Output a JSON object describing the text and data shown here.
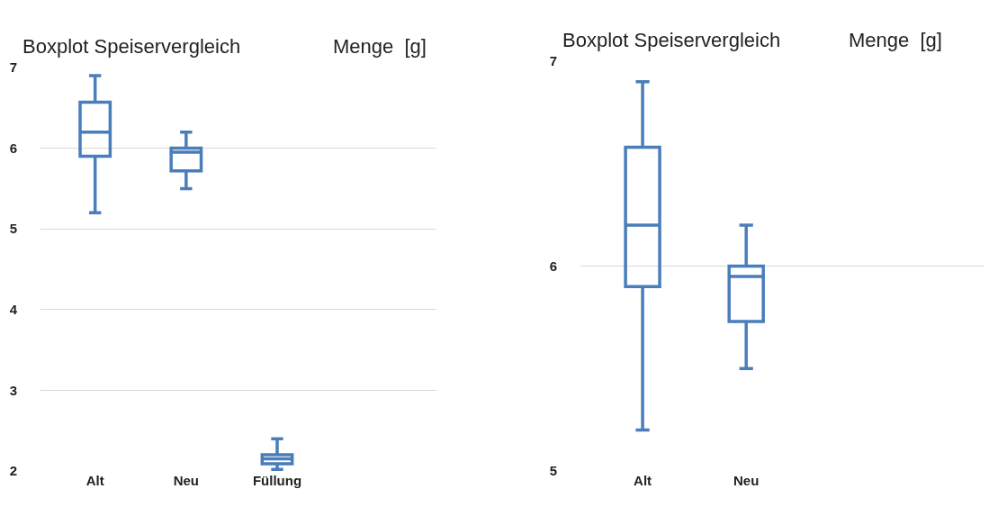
{
  "chart_data": [
    {
      "type": "box",
      "title": "Boxplot Speiservergleich",
      "ylabel": "Menge  [g]",
      "categories": [
        "Alt",
        "Neu",
        "Füllung"
      ],
      "color": "#4a7ebb",
      "grid": "y",
      "ylim": [
        2,
        7
      ],
      "yticks": [
        2,
        3,
        4,
        5,
        6,
        7
      ],
      "boxes": [
        {
          "low": 5.2,
          "q1": 5.9,
          "median": 6.2,
          "q3": 6.57,
          "high": 6.9
        },
        {
          "low": 5.5,
          "q1": 5.72,
          "median": 5.95,
          "q3": 6.0,
          "high": 6.2
        },
        {
          "low": 2.02,
          "q1": 2.09,
          "median": 2.15,
          "q3": 2.2,
          "high": 2.4
        }
      ]
    },
    {
      "type": "box",
      "title": "Boxplot Speiservergleich",
      "ylabel": "Menge  [g]",
      "categories": [
        "Alt",
        "Neu"
      ],
      "color": "#4a7ebb",
      "grid": "y",
      "ylim": [
        5,
        7
      ],
      "yticks": [
        5,
        6,
        7
      ],
      "boxes": [
        {
          "low": 5.2,
          "q1": 5.9,
          "median": 6.2,
          "q3": 6.58,
          "high": 6.9
        },
        {
          "low": 5.5,
          "q1": 5.73,
          "median": 5.95,
          "q3": 6.0,
          "high": 6.2
        }
      ]
    }
  ]
}
